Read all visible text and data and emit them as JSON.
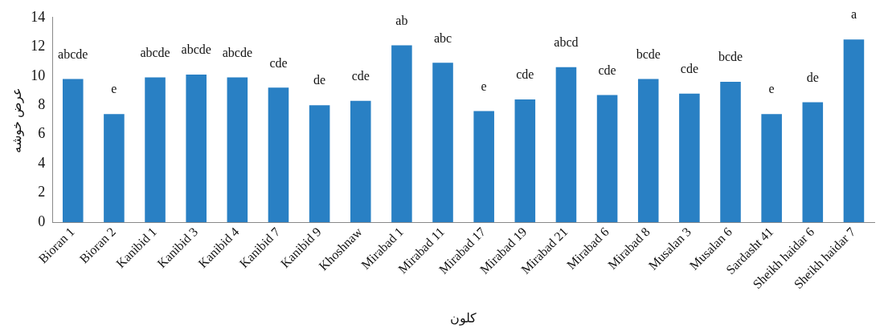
{
  "chart_data": {
    "type": "bar",
    "xlabel": "کلون",
    "ylabel": "عرض خوشه",
    "categories": [
      "Bioran 1",
      "Bioran 2",
      "Kanibid 1",
      "Kanibid 3",
      "Kanibid 4",
      "Kanibid 7",
      "Kanibid 9",
      "Khoshnaw",
      "Mirabad 1",
      "Mirabad 11",
      "Mirabad 17",
      "Mirabad 19",
      "Mirabad 21",
      "Mirabad 6",
      "Mirabad 8",
      "Musalan 3",
      "Musalan 6",
      "Sardasht 41",
      "Sheikh haidar 6",
      "Sheikh haidar 7"
    ],
    "values": [
      9.8,
      7.4,
      9.9,
      10.1,
      9.9,
      9.2,
      8.0,
      8.3,
      12.1,
      10.9,
      7.6,
      8.4,
      10.6,
      8.7,
      9.8,
      8.8,
      9.6,
      7.4,
      8.2,
      12.5
    ],
    "value_labels": [
      "abcde",
      "e",
      "abcde",
      "abcde",
      "abcde",
      "cde",
      "de",
      "cde",
      "ab",
      "abc",
      "e",
      "cde",
      "abcd",
      "cde",
      "bcde",
      "cde",
      "bcde",
      "e",
      "de",
      "a"
    ],
    "color": "#2980c4",
    "ylim": [
      0,
      14
    ],
    "yticks": [
      0,
      2,
      4,
      6,
      8,
      10,
      12,
      14
    ],
    "grid": false,
    "legend": false
  }
}
